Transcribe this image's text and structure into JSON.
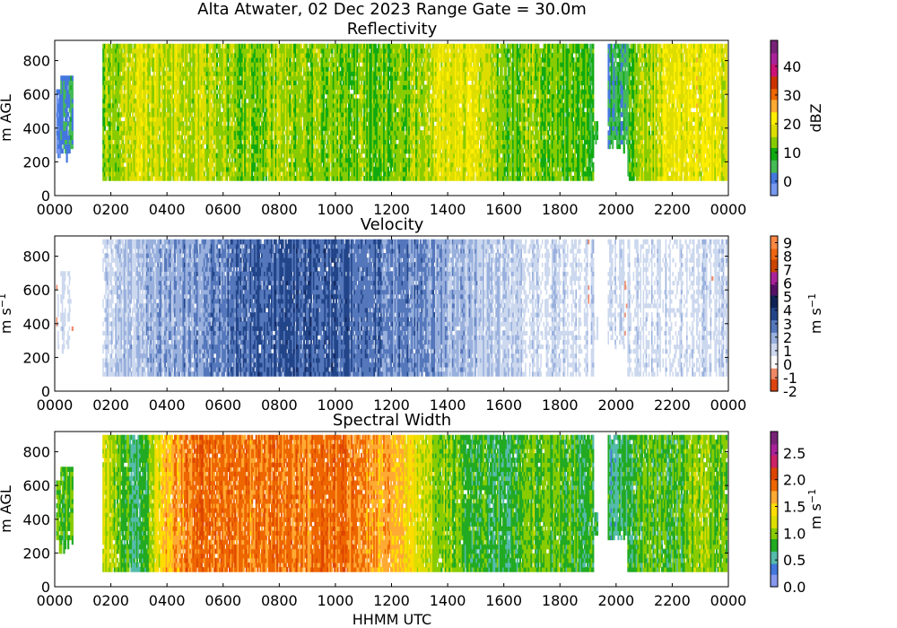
{
  "figure": {
    "suptitle": "Alta Atwater, 02 Dec 2023 Range Gate = 30.0m",
    "xlabel": "HHMM UTC"
  },
  "chart_data": [
    {
      "type": "heatmap",
      "title": "Reflectivity",
      "ylabel": "m AGL",
      "colorbar_label": "dBZ",
      "xticks": [
        "0000",
        "0200",
        "0400",
        "0600",
        "0800",
        "1000",
        "1200",
        "1400",
        "1600",
        "1800",
        "2000",
        "2200",
        "0000"
      ],
      "xlim_hours": [
        0,
        24
      ],
      "yticks": [
        0,
        200,
        400,
        600,
        800
      ],
      "ylim": [
        0,
        920
      ],
      "cbar_ticks": [
        0,
        10,
        20,
        30,
        40
      ],
      "cbar_range": [
        -5,
        49
      ],
      "colormap": [
        "#7799ee",
        "#4477dd",
        "#44bb55",
        "#11aa11",
        "#88cc00",
        "#dddd00",
        "#ffee00",
        "#ffaa33",
        "#ee6600",
        "#cc3300",
        "#cc1177",
        "#aa2299",
        "#772277"
      ],
      "data_gaps_hours": [
        [
          0.6,
          1.7
        ],
        [
          19.3,
          19.7
        ]
      ],
      "time_profile": [
        {
          "h": 0.1,
          "level": 0
        },
        {
          "h": 1.8,
          "level": 14
        },
        {
          "h": 3.0,
          "level": 18
        },
        {
          "h": 4.0,
          "level": 17
        },
        {
          "h": 5.0,
          "level": 16
        },
        {
          "h": 6.0,
          "level": 14
        },
        {
          "h": 7.0,
          "level": 13
        },
        {
          "h": 8.0,
          "level": 15
        },
        {
          "h": 9.0,
          "level": 13
        },
        {
          "h": 10.0,
          "level": 14
        },
        {
          "h": 11.0,
          "level": 12
        },
        {
          "h": 12.0,
          "level": 12
        },
        {
          "h": 13.0,
          "level": 14
        },
        {
          "h": 14.0,
          "level": 20
        },
        {
          "h": 15.0,
          "level": 18
        },
        {
          "h": 16.0,
          "level": 11
        },
        {
          "h": 17.0,
          "level": 14
        },
        {
          "h": 18.0,
          "level": 12
        },
        {
          "h": 19.0,
          "level": 10
        },
        {
          "h": 20.0,
          "level": 4
        },
        {
          "h": 21.0,
          "level": 15
        },
        {
          "h": 22.0,
          "level": 19
        },
        {
          "h": 23.0,
          "level": 20
        },
        {
          "h": 23.9,
          "level": 17
        }
      ],
      "height_range": [
        90,
        900
      ]
    },
    {
      "type": "heatmap",
      "title": "Velocity",
      "ylabel": "m s",
      "ylabel_sup": "−1",
      "colorbar_label": "m s",
      "colorbar_label_sup": "−1",
      "xticks": [
        "0000",
        "0200",
        "0400",
        "0600",
        "0800",
        "1000",
        "1200",
        "1400",
        "1600",
        "1800",
        "2000",
        "2200",
        "0000"
      ],
      "xlim_hours": [
        0,
        24
      ],
      "yticks": [
        0,
        200,
        400,
        600,
        800
      ],
      "ylim": [
        0,
        920
      ],
      "cbar_ticks": [
        -2,
        -1,
        0,
        1,
        2,
        3,
        4,
        5,
        6,
        7,
        8,
        9
      ],
      "cbar_range": [
        -2,
        9.5
      ],
      "colormap": [
        "#dd4411",
        "#ee8866",
        "#ffffff",
        "#ccd8ee",
        "#99b0dd",
        "#5577bb",
        "#224488",
        "#112255",
        "#551166",
        "#aa2299",
        "#cc4400",
        "#ee6611",
        "#ff8844"
      ],
      "data_gaps_hours": [
        [
          0.6,
          1.7
        ],
        [
          19.3,
          19.6
        ]
      ],
      "time_profile": [
        {
          "h": 0.1,
          "level": 0.6
        },
        {
          "h": 1.8,
          "level": 1.2
        },
        {
          "h": 3.0,
          "level": 1.6
        },
        {
          "h": 4.0,
          "level": 2.2
        },
        {
          "h": 5.0,
          "level": 2.4
        },
        {
          "h": 6.0,
          "level": 2.8
        },
        {
          "h": 7.0,
          "level": 3.0
        },
        {
          "h": 8.0,
          "level": 3.3
        },
        {
          "h": 9.0,
          "level": 3.4
        },
        {
          "h": 10.0,
          "level": 3.2
        },
        {
          "h": 11.0,
          "level": 3.0
        },
        {
          "h": 12.0,
          "level": 2.7
        },
        {
          "h": 13.0,
          "level": 2.6
        },
        {
          "h": 14.0,
          "level": 2.0
        },
        {
          "h": 15.0,
          "level": 1.5
        },
        {
          "h": 16.0,
          "level": 1.2
        },
        {
          "h": 17.0,
          "level": 1.0
        },
        {
          "h": 18.0,
          "level": 1.0
        },
        {
          "h": 19.0,
          "level": 0.8
        },
        {
          "h": 20.0,
          "level": 0.7
        },
        {
          "h": 21.0,
          "level": 0.8
        },
        {
          "h": 22.0,
          "level": 1.0
        },
        {
          "h": 23.0,
          "level": 0.9
        },
        {
          "h": 23.9,
          "level": 0.8
        }
      ],
      "height_range": [
        90,
        900
      ]
    },
    {
      "type": "heatmap",
      "title": "Spectral Width",
      "ylabel": "m AGL",
      "colorbar_label": "m s",
      "colorbar_label_sup": "−1",
      "xticks": [
        "0000",
        "0200",
        "0400",
        "0600",
        "0800",
        "1000",
        "1200",
        "1400",
        "1600",
        "1800",
        "2000",
        "2200",
        "0000"
      ],
      "xlim_hours": [
        0,
        24
      ],
      "yticks": [
        0,
        200,
        400,
        600,
        800
      ],
      "ylim": [
        0,
        920
      ],
      "cbar_ticks": [
        "0.0",
        "0.5",
        "1.0",
        "1.5",
        "2.0",
        "2.5"
      ],
      "cbar_range": [
        0,
        2.9
      ],
      "colormap": [
        "#8899ee",
        "#4477dd",
        "#55bbaa",
        "#22aa22",
        "#88cc00",
        "#dddd00",
        "#ffdd00",
        "#ffaa33",
        "#ee6600",
        "#dd4400",
        "#cc2266",
        "#aa2299",
        "#772277"
      ],
      "data_gaps_hours": [
        [
          0.6,
          1.7
        ],
        [
          19.3,
          19.7
        ]
      ],
      "time_profile": [
        {
          "h": 0.1,
          "level": 0.8
        },
        {
          "h": 1.8,
          "level": 1.2
        },
        {
          "h": 3.0,
          "level": 0.6
        },
        {
          "h": 4.0,
          "level": 1.6
        },
        {
          "h": 5.0,
          "level": 1.9
        },
        {
          "h": 6.0,
          "level": 1.9
        },
        {
          "h": 7.0,
          "level": 1.8
        },
        {
          "h": 8.0,
          "level": 1.9
        },
        {
          "h": 9.0,
          "level": 1.8
        },
        {
          "h": 10.0,
          "level": 1.9
        },
        {
          "h": 11.0,
          "level": 1.8
        },
        {
          "h": 12.0,
          "level": 1.6
        },
        {
          "h": 13.0,
          "level": 1.2
        },
        {
          "h": 14.0,
          "level": 1.0
        },
        {
          "h": 15.0,
          "level": 0.8
        },
        {
          "h": 16.0,
          "level": 0.7
        },
        {
          "h": 17.0,
          "level": 0.9
        },
        {
          "h": 18.0,
          "level": 0.9
        },
        {
          "h": 19.0,
          "level": 0.8
        },
        {
          "h": 20.0,
          "level": 0.6
        },
        {
          "h": 21.0,
          "level": 0.9
        },
        {
          "h": 22.0,
          "level": 0.8
        },
        {
          "h": 23.0,
          "level": 1.0
        },
        {
          "h": 23.9,
          "level": 0.9
        }
      ],
      "height_range": [
        90,
        900
      ]
    }
  ]
}
